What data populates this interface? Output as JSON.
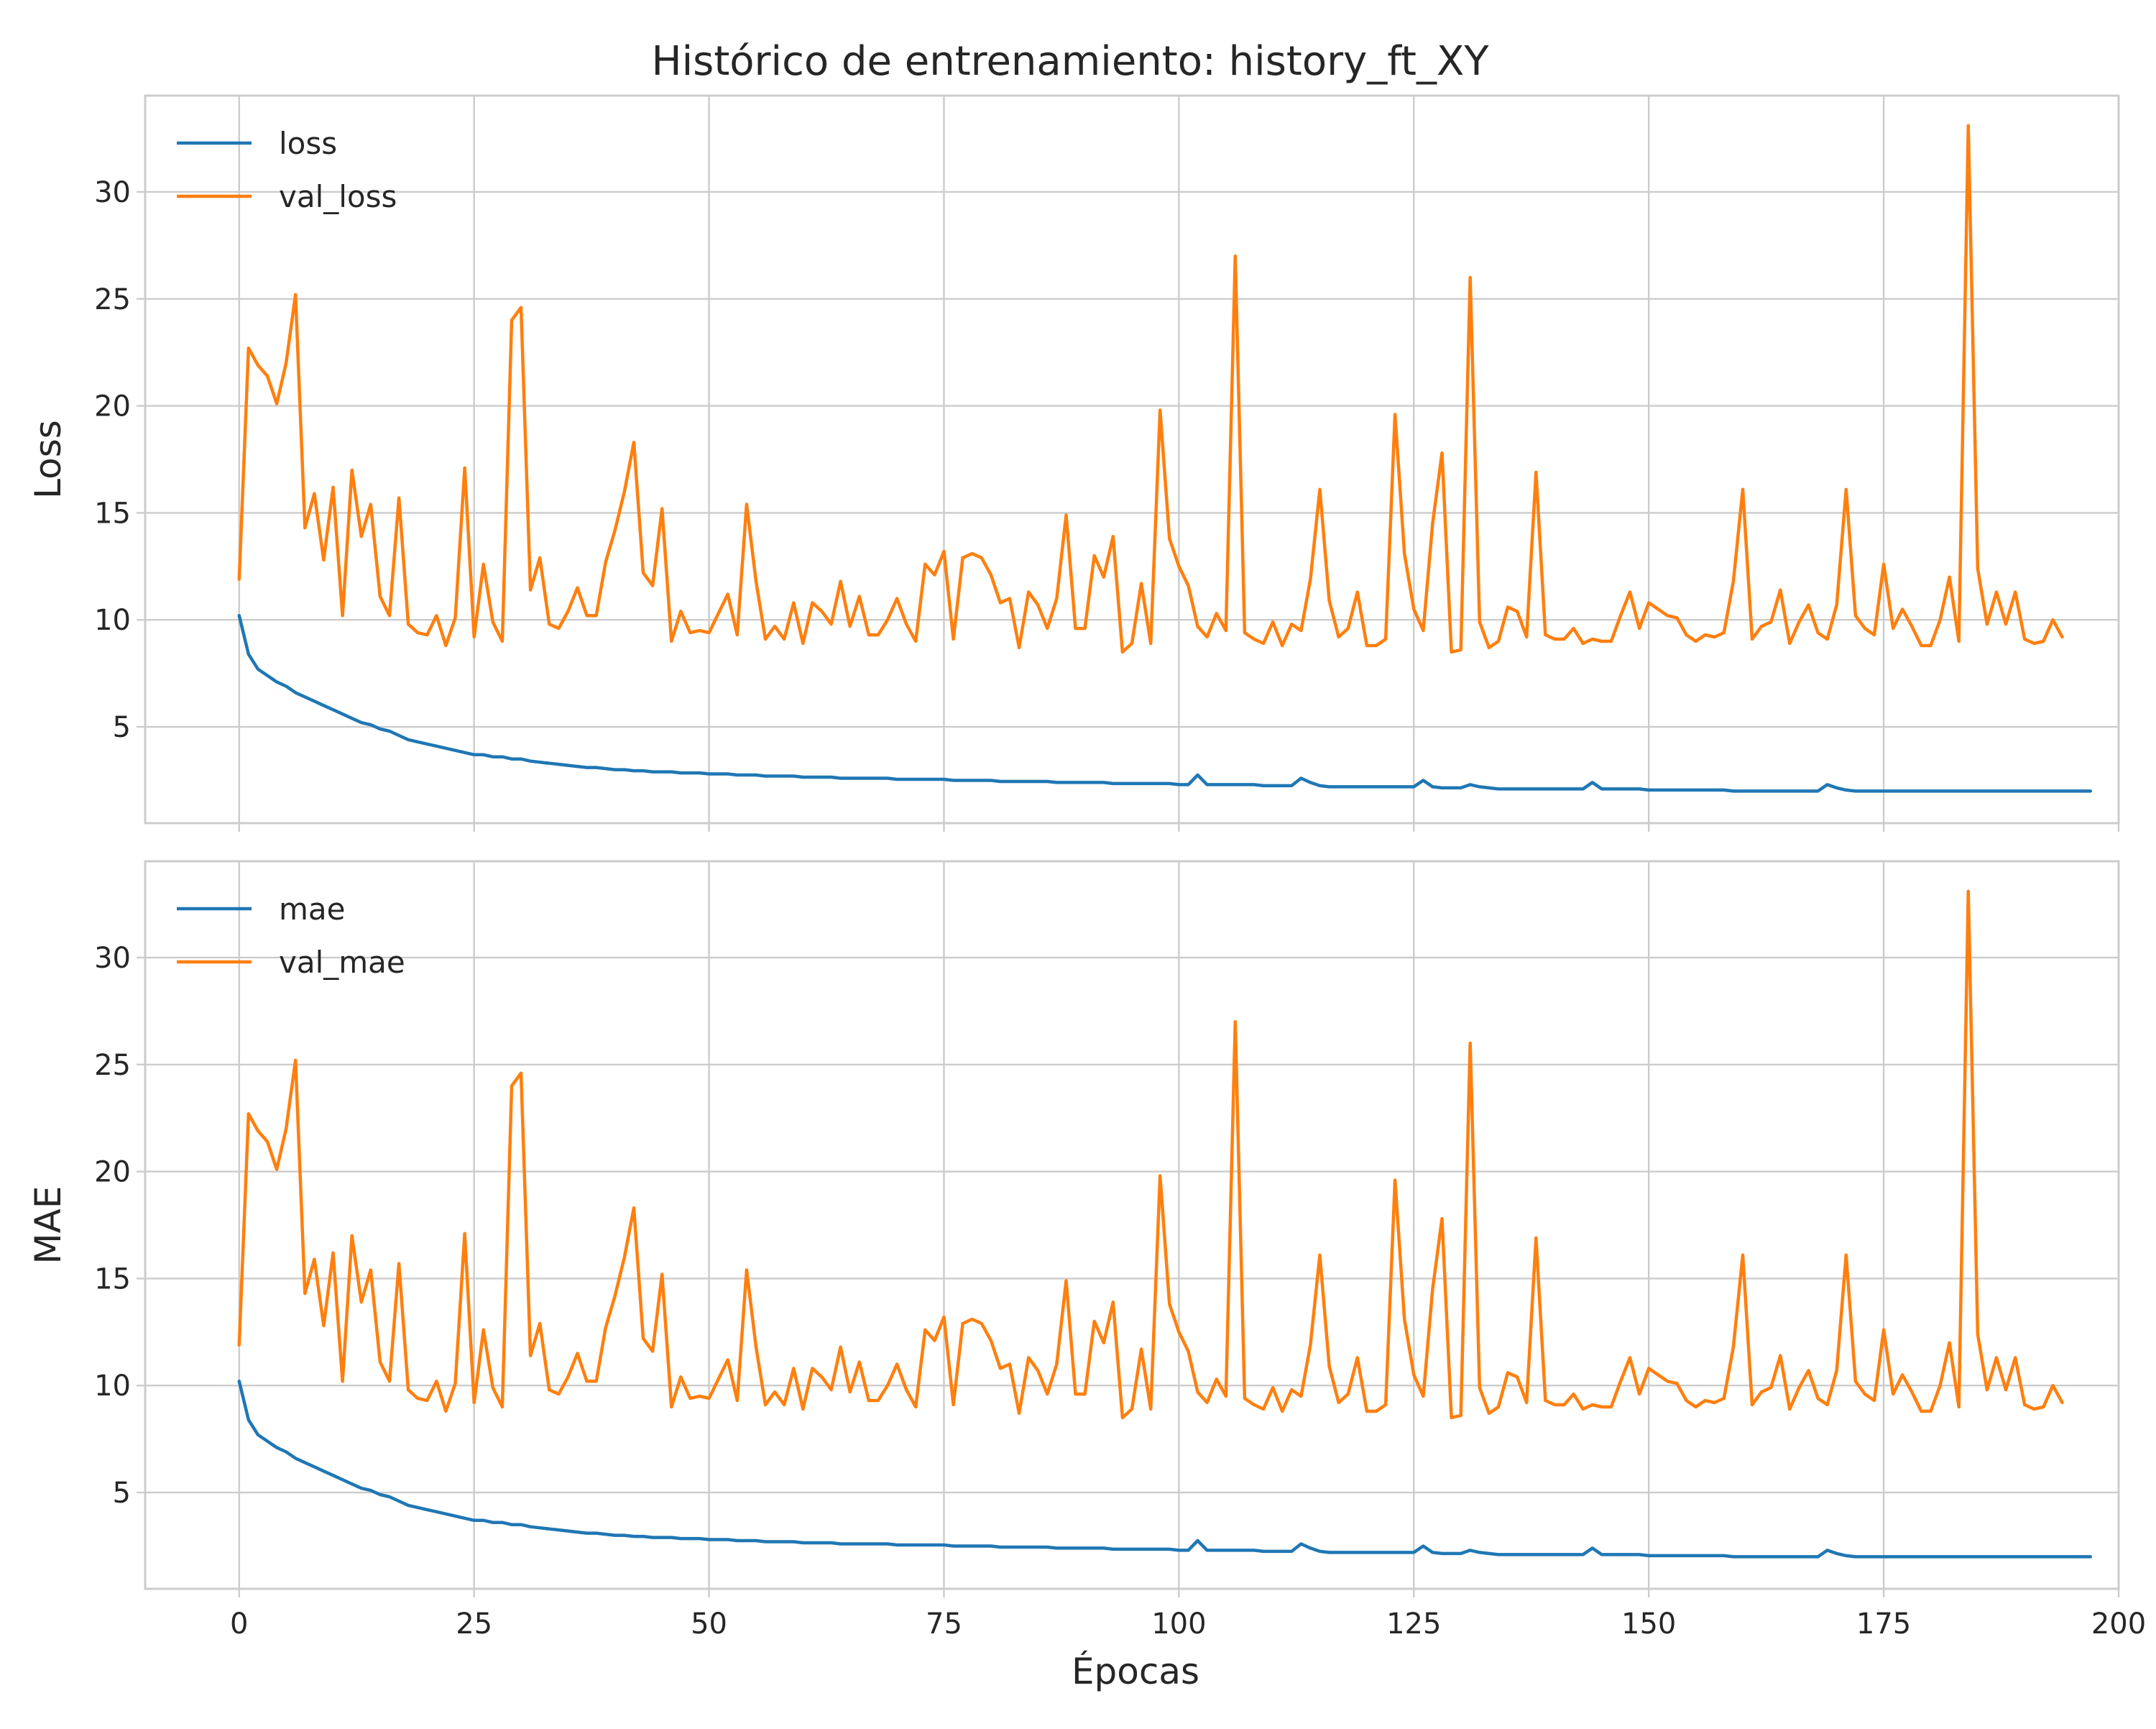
{
  "title": "Histórico de entrenamiento: history_ft_XY",
  "xlabel": "Épocas",
  "colors": {
    "train": "#1f77b4",
    "val": "#ff7f0e",
    "grid": "#cccccc"
  },
  "chart_data": [
    {
      "type": "line",
      "ylabel": "Loss",
      "legend_position": "top-left",
      "grid": true,
      "xlim": [
        -10,
        200
      ],
      "ylim": [
        0.5,
        34.5
      ],
      "xticks": [
        0,
        25,
        50,
        75,
        100,
        125,
        150,
        175,
        200
      ],
      "xtick_labels": [],
      "yticks": [
        5,
        10,
        15,
        20,
        25,
        30
      ],
      "ytick_labels": [
        "5",
        "10",
        "15",
        "20",
        "25",
        "30"
      ],
      "series": [
        {
          "name": "loss",
          "color": "#1f77b4",
          "values": [
            10.2,
            8.4,
            7.7,
            7.4,
            7.1,
            6.9,
            6.6,
            6.4,
            6.2,
            6.0,
            5.8,
            5.6,
            5.4,
            5.2,
            5.1,
            4.9,
            4.8,
            4.6,
            4.4,
            4.3,
            4.2,
            4.1,
            4.0,
            3.9,
            3.8,
            3.7,
            3.7,
            3.6,
            3.6,
            3.5,
            3.5,
            3.4,
            3.35,
            3.3,
            3.25,
            3.2,
            3.15,
            3.1,
            3.1,
            3.05,
            3.0,
            3.0,
            2.95,
            2.95,
            2.9,
            2.9,
            2.9,
            2.85,
            2.85,
            2.85,
            2.8,
            2.8,
            2.8,
            2.75,
            2.75,
            2.75,
            2.7,
            2.7,
            2.7,
            2.7,
            2.65,
            2.65,
            2.65,
            2.65,
            2.6,
            2.6,
            2.6,
            2.6,
            2.6,
            2.6,
            2.55,
            2.55,
            2.55,
            2.55,
            2.55,
            2.55,
            2.5,
            2.5,
            2.5,
            2.5,
            2.5,
            2.45,
            2.45,
            2.45,
            2.45,
            2.45,
            2.45,
            2.4,
            2.4,
            2.4,
            2.4,
            2.4,
            2.4,
            2.35,
            2.35,
            2.35,
            2.35,
            2.35,
            2.35,
            2.35,
            2.3,
            2.3,
            2.75,
            2.3,
            2.3,
            2.3,
            2.3,
            2.3,
            2.3,
            2.25,
            2.25,
            2.25,
            2.25,
            2.6,
            2.4,
            2.25,
            2.2,
            2.2,
            2.2,
            2.2,
            2.2,
            2.2,
            2.2,
            2.2,
            2.2,
            2.2,
            2.5,
            2.2,
            2.15,
            2.15,
            2.15,
            2.3,
            2.2,
            2.15,
            2.1,
            2.1,
            2.1,
            2.1,
            2.1,
            2.1,
            2.1,
            2.1,
            2.1,
            2.1,
            2.4,
            2.1,
            2.1,
            2.1,
            2.1,
            2.1,
            2.05,
            2.05,
            2.05,
            2.05,
            2.05,
            2.05,
            2.05,
            2.05,
            2.05,
            2.0,
            2.0,
            2.0,
            2.0,
            2.0,
            2.0,
            2.0,
            2.0,
            2.0,
            2.0,
            2.3,
            2.15,
            2.05,
            2.0,
            2.0,
            2.0,
            2.0,
            2.0,
            2.0,
            2.0,
            2.0,
            2.0,
            2.0,
            2.0,
            2.0,
            2.0,
            2.0,
            2.0,
            2.0,
            2.0,
            2.0,
            2.0,
            2.0,
            2.0,
            2.0,
            2.0,
            2.0,
            2.0,
            2.0
          ]
        },
        {
          "name": "val_loss",
          "color": "#ff7f0e",
          "values": [
            11.9,
            22.7,
            21.9,
            21.4,
            20.1,
            22.0,
            25.2,
            14.3,
            15.9,
            12.8,
            16.2,
            10.2,
            17.0,
            13.9,
            15.4,
            11.1,
            10.2,
            15.7,
            9.8,
            9.4,
            9.3,
            10.2,
            8.8,
            10.1,
            17.1,
            9.2,
            12.6,
            9.9,
            9.0,
            24.0,
            24.6,
            11.4,
            12.9,
            9.8,
            9.6,
            10.4,
            11.5,
            10.2,
            10.2,
            12.7,
            14.2,
            16.0,
            18.3,
            12.2,
            11.6,
            15.2,
            9.0,
            10.4,
            9.4,
            9.5,
            9.4,
            10.3,
            11.2,
            9.3,
            15.4,
            11.8,
            9.1,
            9.7,
            9.1,
            10.8,
            8.9,
            10.8,
            10.4,
            9.8,
            11.8,
            9.7,
            11.1,
            9.3,
            9.3,
            10.0,
            11.0,
            9.8,
            9.0,
            12.6,
            12.1,
            13.2,
            9.1,
            12.9,
            13.1,
            12.9,
            12.1,
            10.8,
            11.0,
            8.7,
            11.3,
            10.7,
            9.6,
            11.0,
            14.9,
            9.6,
            9.6,
            13.0,
            12.0,
            13.9,
            8.5,
            8.9,
            11.7,
            8.9,
            19.8,
            13.8,
            12.5,
            11.6,
            9.7,
            9.2,
            10.3,
            9.5,
            27.0,
            9.4,
            9.1,
            8.9,
            9.9,
            8.8,
            9.8,
            9.5,
            11.9,
            16.1,
            10.9,
            9.2,
            9.6,
            11.3,
            8.8,
            8.8,
            9.1,
            19.6,
            13.1,
            10.5,
            9.5,
            14.5,
            17.8,
            8.5,
            8.6,
            26.0,
            9.9,
            8.7,
            9.0,
            10.6,
            10.4,
            9.2,
            16.9,
            9.3,
            9.1,
            9.1,
            9.6,
            8.9,
            9.1,
            9.0,
            9.0,
            10.2,
            11.3,
            9.6,
            10.8,
            10.5,
            10.2,
            10.1,
            9.3,
            9.0,
            9.3,
            9.2,
            9.4,
            11.8,
            16.1,
            9.1,
            9.7,
            9.9,
            11.4,
            8.9,
            9.9,
            10.7,
            9.4,
            9.1,
            10.7,
            16.1,
            10.2,
            9.6,
            9.3,
            12.6,
            9.6,
            10.5,
            9.7,
            8.8,
            8.8,
            10.0,
            12.0,
            9.0,
            33.1,
            12.4,
            9.8,
            11.3,
            9.8,
            11.3,
            9.1,
            8.9,
            9.0,
            10.0,
            9.2
          ]
        }
      ]
    },
    {
      "type": "line",
      "ylabel": "MAE",
      "legend_position": "top-left",
      "grid": true,
      "xlim": [
        -10,
        200
      ],
      "ylim": [
        0.5,
        34.5
      ],
      "xticks": [
        0,
        25,
        50,
        75,
        100,
        125,
        150,
        175,
        200
      ],
      "xtick_labels": [
        "0",
        "25",
        "50",
        "75",
        "100",
        "125",
        "150",
        "175",
        "200"
      ],
      "yticks": [
        5,
        10,
        15,
        20,
        25,
        30
      ],
      "ytick_labels": [
        "5",
        "10",
        "15",
        "20",
        "25",
        "30"
      ],
      "series": [
        {
          "name": "mae",
          "color": "#1f77b4",
          "values": [
            10.2,
            8.4,
            7.7,
            7.4,
            7.1,
            6.9,
            6.6,
            6.4,
            6.2,
            6.0,
            5.8,
            5.6,
            5.4,
            5.2,
            5.1,
            4.9,
            4.8,
            4.6,
            4.4,
            4.3,
            4.2,
            4.1,
            4.0,
            3.9,
            3.8,
            3.7,
            3.7,
            3.6,
            3.6,
            3.5,
            3.5,
            3.4,
            3.35,
            3.3,
            3.25,
            3.2,
            3.15,
            3.1,
            3.1,
            3.05,
            3.0,
            3.0,
            2.95,
            2.95,
            2.9,
            2.9,
            2.9,
            2.85,
            2.85,
            2.85,
            2.8,
            2.8,
            2.8,
            2.75,
            2.75,
            2.75,
            2.7,
            2.7,
            2.7,
            2.7,
            2.65,
            2.65,
            2.65,
            2.65,
            2.6,
            2.6,
            2.6,
            2.6,
            2.6,
            2.6,
            2.55,
            2.55,
            2.55,
            2.55,
            2.55,
            2.55,
            2.5,
            2.5,
            2.5,
            2.5,
            2.5,
            2.45,
            2.45,
            2.45,
            2.45,
            2.45,
            2.45,
            2.4,
            2.4,
            2.4,
            2.4,
            2.4,
            2.4,
            2.35,
            2.35,
            2.35,
            2.35,
            2.35,
            2.35,
            2.35,
            2.3,
            2.3,
            2.75,
            2.3,
            2.3,
            2.3,
            2.3,
            2.3,
            2.3,
            2.25,
            2.25,
            2.25,
            2.25,
            2.6,
            2.4,
            2.25,
            2.2,
            2.2,
            2.2,
            2.2,
            2.2,
            2.2,
            2.2,
            2.2,
            2.2,
            2.2,
            2.5,
            2.2,
            2.15,
            2.15,
            2.15,
            2.3,
            2.2,
            2.15,
            2.1,
            2.1,
            2.1,
            2.1,
            2.1,
            2.1,
            2.1,
            2.1,
            2.1,
            2.1,
            2.4,
            2.1,
            2.1,
            2.1,
            2.1,
            2.1,
            2.05,
            2.05,
            2.05,
            2.05,
            2.05,
            2.05,
            2.05,
            2.05,
            2.05,
            2.0,
            2.0,
            2.0,
            2.0,
            2.0,
            2.0,
            2.0,
            2.0,
            2.0,
            2.0,
            2.3,
            2.15,
            2.05,
            2.0,
            2.0,
            2.0,
            2.0,
            2.0,
            2.0,
            2.0,
            2.0,
            2.0,
            2.0,
            2.0,
            2.0,
            2.0,
            2.0,
            2.0,
            2.0,
            2.0,
            2.0,
            2.0,
            2.0,
            2.0,
            2.0,
            2.0,
            2.0,
            2.0,
            2.0
          ]
        },
        {
          "name": "val_mae",
          "color": "#ff7f0e",
          "values": [
            11.9,
            22.7,
            21.9,
            21.4,
            20.1,
            22.0,
            25.2,
            14.3,
            15.9,
            12.8,
            16.2,
            10.2,
            17.0,
            13.9,
            15.4,
            11.1,
            10.2,
            15.7,
            9.8,
            9.4,
            9.3,
            10.2,
            8.8,
            10.1,
            17.1,
            9.2,
            12.6,
            9.9,
            9.0,
            24.0,
            24.6,
            11.4,
            12.9,
            9.8,
            9.6,
            10.4,
            11.5,
            10.2,
            10.2,
            12.7,
            14.2,
            16.0,
            18.3,
            12.2,
            11.6,
            15.2,
            9.0,
            10.4,
            9.4,
            9.5,
            9.4,
            10.3,
            11.2,
            9.3,
            15.4,
            11.8,
            9.1,
            9.7,
            9.1,
            10.8,
            8.9,
            10.8,
            10.4,
            9.8,
            11.8,
            9.7,
            11.1,
            9.3,
            9.3,
            10.0,
            11.0,
            9.8,
            9.0,
            12.6,
            12.1,
            13.2,
            9.1,
            12.9,
            13.1,
            12.9,
            12.1,
            10.8,
            11.0,
            8.7,
            11.3,
            10.7,
            9.6,
            11.0,
            14.9,
            9.6,
            9.6,
            13.0,
            12.0,
            13.9,
            8.5,
            8.9,
            11.7,
            8.9,
            19.8,
            13.8,
            12.5,
            11.6,
            9.7,
            9.2,
            10.3,
            9.5,
            27.0,
            9.4,
            9.1,
            8.9,
            9.9,
            8.8,
            9.8,
            9.5,
            11.9,
            16.1,
            10.9,
            9.2,
            9.6,
            11.3,
            8.8,
            8.8,
            9.1,
            19.6,
            13.1,
            10.5,
            9.5,
            14.5,
            17.8,
            8.5,
            8.6,
            26.0,
            9.9,
            8.7,
            9.0,
            10.6,
            10.4,
            9.2,
            16.9,
            9.3,
            9.1,
            9.1,
            9.6,
            8.9,
            9.1,
            9.0,
            9.0,
            10.2,
            11.3,
            9.6,
            10.8,
            10.5,
            10.2,
            10.1,
            9.3,
            9.0,
            9.3,
            9.2,
            9.4,
            11.8,
            16.1,
            9.1,
            9.7,
            9.9,
            11.4,
            8.9,
            9.9,
            10.7,
            9.4,
            9.1,
            10.7,
            16.1,
            10.2,
            9.6,
            9.3,
            12.6,
            9.6,
            10.5,
            9.7,
            8.8,
            8.8,
            10.0,
            12.0,
            9.0,
            33.1,
            12.4,
            9.8,
            11.3,
            9.8,
            11.3,
            9.1,
            8.9,
            9.0,
            10.0,
            9.2
          ]
        }
      ]
    }
  ]
}
